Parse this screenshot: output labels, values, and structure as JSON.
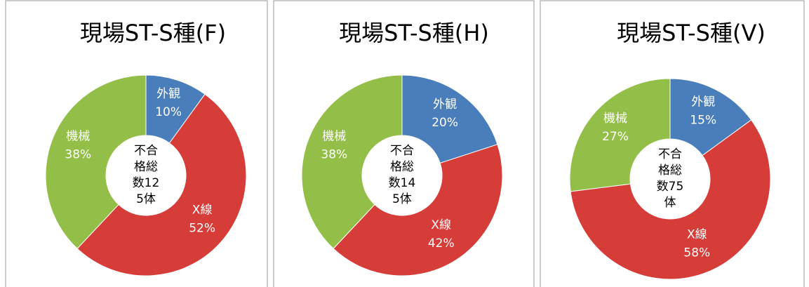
{
  "chart_data": [
    {
      "type": "donut",
      "title": "現場ST-S種(F)",
      "center_label": "不合格総数125体",
      "categories": [
        "外観",
        "X線",
        "機械"
      ],
      "values": [
        10,
        52,
        38
      ],
      "value_labels": [
        "10%",
        "52%",
        "38%"
      ],
      "colors": [
        "#4a7ebb",
        "#d63c38",
        "#93bf48"
      ]
    },
    {
      "type": "donut",
      "title": "現場ST-S種(H)",
      "center_label": "不合格総数145体",
      "categories": [
        "外観",
        "X線",
        "機械"
      ],
      "values": [
        20,
        42,
        38
      ],
      "value_labels": [
        "20%",
        "42%",
        "38%"
      ],
      "colors": [
        "#4a7ebb",
        "#d63c38",
        "#93bf48"
      ]
    },
    {
      "type": "donut",
      "title": "現場ST-S種(V)",
      "center_label": "不合格総数75体",
      "categories": [
        "外観",
        "X線",
        "機械"
      ],
      "values": [
        15,
        58,
        27
      ],
      "value_labels": [
        "15%",
        "58%",
        "27%"
      ],
      "colors": [
        "#4a7ebb",
        "#d63c38",
        "#93bf48"
      ]
    }
  ]
}
